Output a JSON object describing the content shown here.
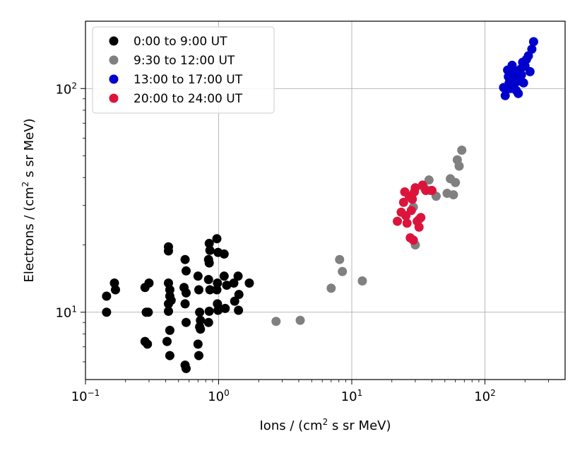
{
  "chart_data": {
    "type": "scatter",
    "title": "",
    "xlabel": "Ions / (cm",
    "xlabel_sup": "2",
    "xlabel_tail": " s sr MeV)",
    "ylabel": "Electrons / (cm",
    "ylabel_sup": "2",
    "ylabel_tail": " s sr MeV)",
    "xscale": "log",
    "yscale": "log",
    "xlim": [
      0.1,
      400
    ],
    "ylim": [
      5,
      200
    ],
    "grid": true,
    "legend_position": "top-left",
    "x_ticks": [
      {
        "value": 0.1,
        "base": "10",
        "exp": "−1"
      },
      {
        "value": 1,
        "base": "10",
        "exp": "0"
      },
      {
        "value": 10,
        "base": "10",
        "exp": "1"
      },
      {
        "value": 100,
        "base": "10",
        "exp": "2"
      }
    ],
    "y_ticks": [
      {
        "value": 10,
        "base": "10",
        "exp": "1"
      },
      {
        "value": 100,
        "base": "10",
        "exp": "2"
      }
    ],
    "series": [
      {
        "name": "0:00 to 9:00 UT",
        "color": "#000000",
        "points": [
          [
            0.144,
            11.8
          ],
          [
            0.144,
            10.0
          ],
          [
            0.165,
            13.5
          ],
          [
            0.168,
            12.6
          ],
          [
            0.28,
            12.9
          ],
          [
            0.286,
            10.0
          ],
          [
            0.296,
            10.0
          ],
          [
            0.3,
            13.5
          ],
          [
            0.28,
            7.4
          ],
          [
            0.292,
            7.2
          ],
          [
            0.42,
            19.6
          ],
          [
            0.42,
            18.8
          ],
          [
            0.42,
            13.5
          ],
          [
            0.43,
            12.6
          ],
          [
            0.43,
            11.8
          ],
          [
            0.42,
            10.9
          ],
          [
            0.44,
            11.3
          ],
          [
            0.42,
            10.1
          ],
          [
            0.43,
            8.3
          ],
          [
            0.41,
            7.4
          ],
          [
            0.43,
            6.4
          ],
          [
            0.56,
            17.2
          ],
          [
            0.57,
            15.3
          ],
          [
            0.55,
            12.9
          ],
          [
            0.57,
            12.2
          ],
          [
            0.56,
            10.9
          ],
          [
            0.57,
            9.0
          ],
          [
            0.56,
            5.8
          ],
          [
            0.57,
            5.6
          ],
          [
            0.7,
            14.5
          ],
          [
            0.71,
            12.6
          ],
          [
            0.72,
            10.0
          ],
          [
            0.73,
            9.2
          ],
          [
            0.72,
            8.6
          ],
          [
            0.73,
            8.4
          ],
          [
            0.7,
            7.2
          ],
          [
            0.71,
            6.4
          ],
          [
            0.85,
            20.3
          ],
          [
            0.86,
            18.9
          ],
          [
            0.84,
            17.2
          ],
          [
            0.85,
            16.6
          ],
          [
            0.84,
            14.0
          ],
          [
            0.86,
            12.6
          ],
          [
            0.85,
            10.1
          ],
          [
            0.84,
            9.0
          ],
          [
            0.97,
            21.3
          ],
          [
            0.99,
            18.5
          ],
          [
            0.98,
            13.5
          ],
          [
            0.97,
            12.6
          ],
          [
            0.98,
            10.9
          ],
          [
            0.99,
            10.2
          ],
          [
            1.1,
            18.2
          ],
          [
            1.1,
            14.5
          ],
          [
            1.15,
            13.2
          ],
          [
            1.12,
            10.4
          ],
          [
            1.3,
            13.5
          ],
          [
            1.32,
            11.2
          ],
          [
            1.4,
            14.5
          ],
          [
            1.42,
            12.0
          ],
          [
            1.41,
            10.2
          ],
          [
            1.7,
            13.5
          ]
        ]
      },
      {
        "name": "9:30 to 12:00 UT",
        "color": "#808080",
        "points": [
          [
            2.7,
            9.1
          ],
          [
            4.1,
            9.2
          ],
          [
            7.0,
            12.8
          ],
          [
            8.1,
            17.2
          ],
          [
            8.5,
            15.2
          ],
          [
            12.0,
            13.8
          ],
          [
            29.0,
            29.5
          ],
          [
            30.0,
            20.0
          ],
          [
            32.0,
            26.0
          ],
          [
            35.0,
            36.0
          ],
          [
            38.0,
            39.0
          ],
          [
            39.0,
            35.0
          ],
          [
            43.0,
            33.0
          ],
          [
            52.0,
            34.0
          ],
          [
            55.0,
            39.5
          ],
          [
            58.0,
            33.5
          ],
          [
            60.0,
            38.0
          ],
          [
            62.0,
            48.0
          ],
          [
            64.0,
            45.0
          ],
          [
            67.0,
            53.0
          ]
        ]
      },
      {
        "name": "13:00 to 17:00 UT",
        "color": "#0000cc",
        "points": [
          [
            138,
            101
          ],
          [
            142,
            93
          ],
          [
            148,
            121
          ],
          [
            150,
            113
          ],
          [
            152,
            106
          ],
          [
            155,
            100
          ],
          [
            158,
            117
          ],
          [
            160,
            127
          ],
          [
            162,
            110
          ],
          [
            165,
            104
          ],
          [
            168,
            120
          ],
          [
            172,
            98
          ],
          [
            175,
            112
          ],
          [
            178,
            95
          ],
          [
            180,
            108
          ],
          [
            185,
            122
          ],
          [
            188,
            115
          ],
          [
            192,
            131
          ],
          [
            195,
            106
          ],
          [
            200,
            126
          ],
          [
            205,
            135
          ],
          [
            212,
            140
          ],
          [
            218,
            119
          ],
          [
            225,
            150
          ],
          [
            232,
            162
          ]
        ]
      },
      {
        "name": "20:00 to 24:00 UT",
        "color": "#dc143c",
        "points": [
          [
            22.0,
            25.5
          ],
          [
            23.5,
            28.0
          ],
          [
            24.5,
            31.0
          ],
          [
            25.0,
            34.5
          ],
          [
            25.5,
            27.0
          ],
          [
            26.0,
            25.0
          ],
          [
            27.0,
            33.0
          ],
          [
            27.5,
            21.5
          ],
          [
            28.0,
            28.5
          ],
          [
            28.5,
            32.0
          ],
          [
            29.0,
            21.0
          ],
          [
            29.5,
            34.5
          ],
          [
            30.0,
            36.0
          ],
          [
            31.0,
            25.5
          ],
          [
            32.0,
            24.0
          ],
          [
            33.0,
            26.5
          ],
          [
            34.0,
            37.0
          ],
          [
            36.0,
            35.0
          ],
          [
            40.0,
            35.0
          ]
        ]
      }
    ]
  }
}
